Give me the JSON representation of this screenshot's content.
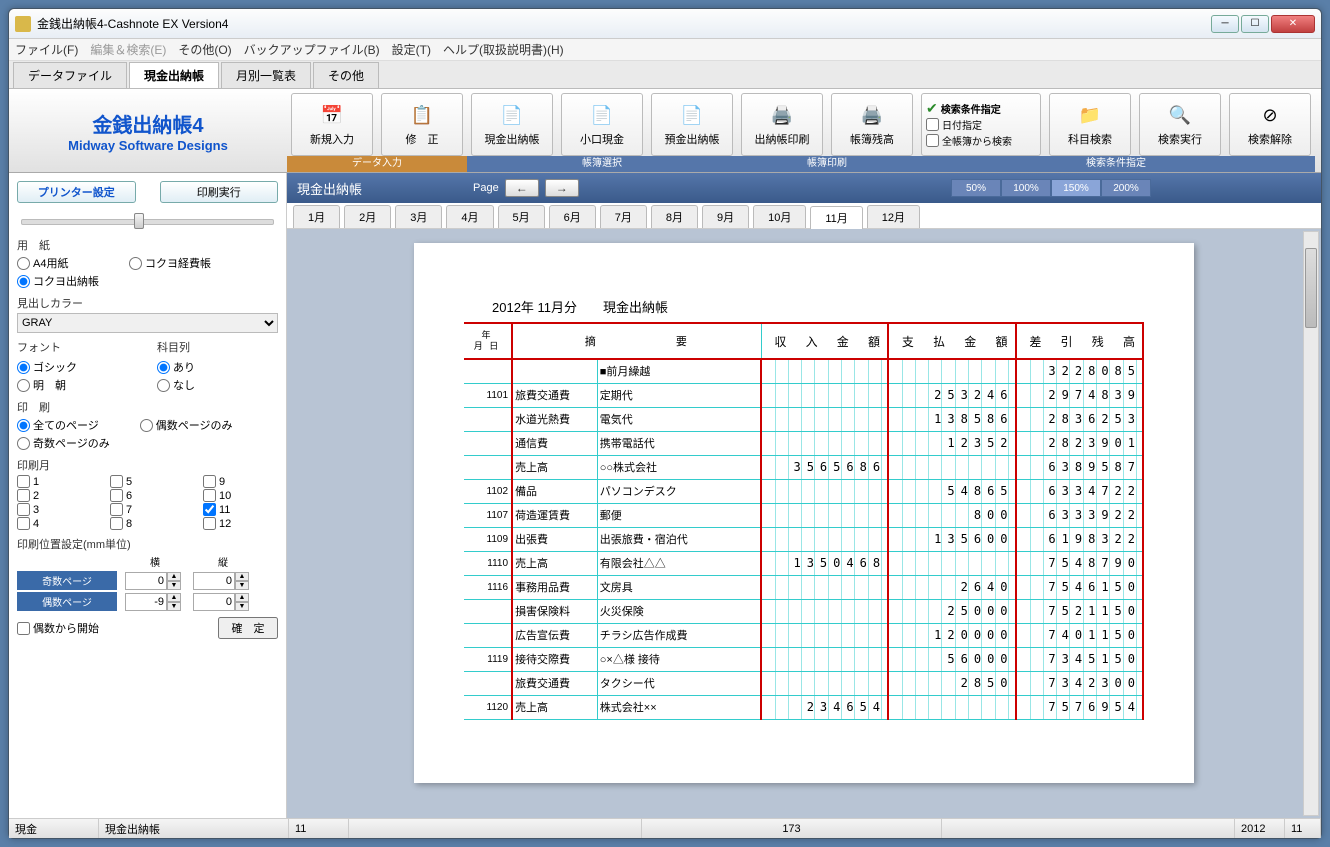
{
  "window": {
    "title": "金銭出納帳4-Cashnote EX Version4"
  },
  "menubar": [
    "ファイル(F)",
    "編集＆検索(E)",
    "その他(O)",
    "バックアップファイル(B)",
    "設定(T)",
    "ヘルプ(取扱説明書)(H)"
  ],
  "maintabs": [
    {
      "label": "データファイル",
      "active": false
    },
    {
      "label": "現金出納帳",
      "active": true
    },
    {
      "label": "月別一覧表",
      "active": false
    },
    {
      "label": "その他",
      "active": false
    }
  ],
  "brand": {
    "title": "金銭出納帳4",
    "subtitle": "Midway Software Designs"
  },
  "toolbar": {
    "groups": [
      {
        "label": "データ入力",
        "color": "orange",
        "buttons": [
          {
            "label": "新規入力",
            "icon": "📅"
          },
          {
            "label": "修　正",
            "icon": "📋"
          }
        ]
      },
      {
        "label": "帳簿選択",
        "buttons": [
          {
            "label": "現金出納帳",
            "icon": "📄"
          },
          {
            "label": "小口現金",
            "icon": "📄"
          },
          {
            "label": "預金出納帳",
            "icon": "📄"
          }
        ]
      },
      {
        "label": "帳簿印刷",
        "buttons": [
          {
            "label": "出納帳印刷",
            "icon": "🖨️"
          },
          {
            "label": "帳簿残高",
            "icon": "🖨️"
          }
        ]
      },
      {
        "label": "検索条件指定",
        "buttons": [
          {
            "label": "科目検索",
            "icon": "📁"
          },
          {
            "label": "検索実行",
            "icon": "🔍"
          },
          {
            "label": "検索解除",
            "icon": "⊘"
          }
        ],
        "hasSearchOpts": true
      }
    ],
    "searchopts": {
      "title": "検索条件指定",
      "o1": "日付指定",
      "o2": "全帳簿から検索"
    }
  },
  "sidebar": {
    "printerSettings": "プリンター設定",
    "printRun": "印刷実行",
    "paper": {
      "title": "用　紙",
      "o1": "A4用紙",
      "o2": "コクヨ経費帳",
      "o3": "コクヨ出納帳",
      "selected": "o3"
    },
    "headingColor": {
      "title": "見出しカラー",
      "value": "GRAY"
    },
    "font": {
      "title": "フォント",
      "o1": "ゴシック",
      "o2": "明　朝"
    },
    "subjcol": {
      "title": "科目列",
      "o1": "あり",
      "o2": "なし"
    },
    "printpages": {
      "title": "印　刷",
      "o1": "全てのページ",
      "o2": "偶数ページのみ",
      "o3": "奇数ページのみ"
    },
    "printmonth": {
      "title": "印刷月",
      "months": [
        "1",
        "2",
        "3",
        "4",
        "5",
        "6",
        "7",
        "8",
        "9",
        "10",
        "11",
        "12"
      ],
      "checked": [
        11
      ]
    },
    "position": {
      "title": "印刷位置設定(mm単位)",
      "colH": "横",
      "colV": "縦",
      "odd": "奇数ページ",
      "even": "偶数ページ",
      "oddH": "0",
      "oddV": "0",
      "evenH": "-9",
      "evenV": "0",
      "startEven": "偶数から開始",
      "confirm": "確　定"
    }
  },
  "mainheader": {
    "title": "現金出納帳",
    "pageLabel": "Page",
    "zooms": [
      "50%",
      "100%",
      "150%",
      "200%"
    ],
    "activeZoom": 2
  },
  "monthtabs": [
    "1月",
    "2月",
    "3月",
    "4月",
    "5月",
    "6月",
    "7月",
    "8月",
    "9月",
    "10月",
    "11月",
    "12月"
  ],
  "activeMonthTab": 10,
  "page": {
    "title": "2012年 11月分　　現金出納帳",
    "headers": {
      "date": "年\n月 日",
      "summary": "摘　　　　　　要",
      "income": "収 入 金 額",
      "expense": "支 払 金 額",
      "balance": "差 引 残 高"
    },
    "rows": [
      {
        "date": "",
        "cat": "",
        "desc": "■前月繰越",
        "in": "",
        "out": "",
        "bal": "3228085"
      },
      {
        "date": "1101",
        "cat": "旅費交通費",
        "desc": "定期代",
        "in": "",
        "out": "253246",
        "bal": "2974839"
      },
      {
        "date": "",
        "cat": "水道光熱費",
        "desc": "電気代",
        "in": "",
        "out": "138586",
        "bal": "2836253"
      },
      {
        "date": "",
        "cat": "通信費",
        "desc": "携帯電話代",
        "in": "",
        "out": "12352",
        "bal": "2823901"
      },
      {
        "date": "",
        "cat": "売上高",
        "desc": "○○株式会社",
        "in": "3565686",
        "out": "",
        "bal": "6389587"
      },
      {
        "date": "1102",
        "cat": "備品",
        "desc": "パソコンデスク",
        "in": "",
        "out": "54865",
        "bal": "6334722"
      },
      {
        "date": "1107",
        "cat": "荷造運賃費",
        "desc": "郵便",
        "in": "",
        "out": "800",
        "bal": "6333922"
      },
      {
        "date": "1109",
        "cat": "出張費",
        "desc": "出張旅費・宿泊代",
        "in": "",
        "out": "135600",
        "bal": "6198322"
      },
      {
        "date": "1110",
        "cat": "売上高",
        "desc": "有限会社△△",
        "in": "1350468",
        "out": "",
        "bal": "7548790"
      },
      {
        "date": "1116",
        "cat": "事務用品費",
        "desc": "文房具",
        "in": "",
        "out": "2640",
        "bal": "7546150"
      },
      {
        "date": "",
        "cat": "損害保険料",
        "desc": "火災保険",
        "in": "",
        "out": "25000",
        "bal": "7521150"
      },
      {
        "date": "",
        "cat": "広告宣伝費",
        "desc": "チラシ広告作成費",
        "in": "",
        "out": "120000",
        "bal": "7401150"
      },
      {
        "date": "1119",
        "cat": "接待交際費",
        "desc": "○×△様 接待",
        "in": "",
        "out": "56000",
        "bal": "7345150"
      },
      {
        "date": "",
        "cat": "旅費交通費",
        "desc": "タクシー代",
        "in": "",
        "out": "2850",
        "bal": "7342300"
      },
      {
        "date": "1120",
        "cat": "売上高",
        "desc": "株式会社××",
        "in": "234654",
        "out": "",
        "bal": "7576954"
      }
    ]
  },
  "status": {
    "c1": "現金",
    "c2": "現金出納帳",
    "c3": "11",
    "c4": "",
    "c5": "173",
    "c6": "",
    "c7": "2012",
    "c8": "11"
  }
}
